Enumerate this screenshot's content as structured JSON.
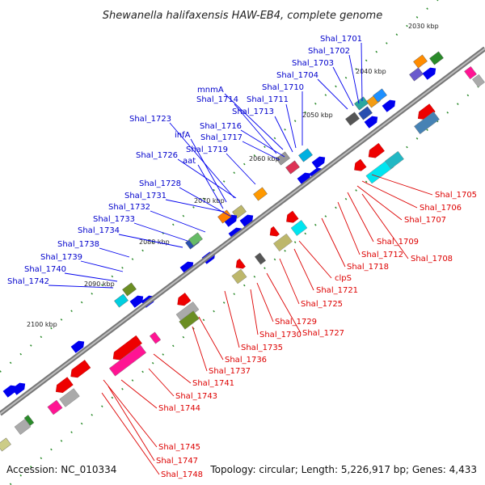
{
  "header": {
    "title": "Shewanella halifaxensis HAW-EB4, complete genome"
  },
  "footer": {
    "accession": "Accession: NC_010334",
    "stats": "Topology: circular; Length: 5,226,917 bp; Genes: 4,433"
  },
  "colors": {
    "forward_label": "#0000cc",
    "reverse_label": "#dd0000",
    "backbone": "#8a8a8a",
    "tick_dot": "#2a8a2a"
  },
  "ticks": [
    "2030 kbp",
    "2040 kbp",
    "2050 kbp",
    "2060 kbp",
    "2070 kbp",
    "2080 kbp",
    "2090 kbp",
    "2100 kbp"
  ],
  "labels_forward": [
    "Shal_1701",
    "Shal_1702",
    "Shal_1703",
    "Shal_1704",
    "mnmA",
    "Shal_1710",
    "Shal_1714",
    "Shal_1711",
    "Shal_1713",
    "Shal_1723",
    "infA",
    "Shal_1716",
    "Shal_1717",
    "Shal_1719",
    "Shal_1726",
    "aat",
    "Shal_1728",
    "Shal_1731",
    "Shal_1732",
    "Shal_1733",
    "Shal_1734",
    "Shal_1738",
    "Shal_1739",
    "Shal_1740",
    "Shal_1742"
  ],
  "labels_reverse": [
    "Shal_1705",
    "Shal_1706",
    "Shal_1707",
    "Shal_1709",
    "Shal_1712",
    "Shal_1708",
    "Shal_1718",
    "clpS",
    "Shal_1721",
    "Shal_1725",
    "Shal_1729",
    "Shal_1727",
    "Shal_1730",
    "Shal_1735",
    "Shal_1736",
    "Shal_1737",
    "Shal_1741",
    "Shal_1743",
    "Shal_1744",
    "Shal_1745",
    "Shal_1747",
    "Shal_1748"
  ]
}
